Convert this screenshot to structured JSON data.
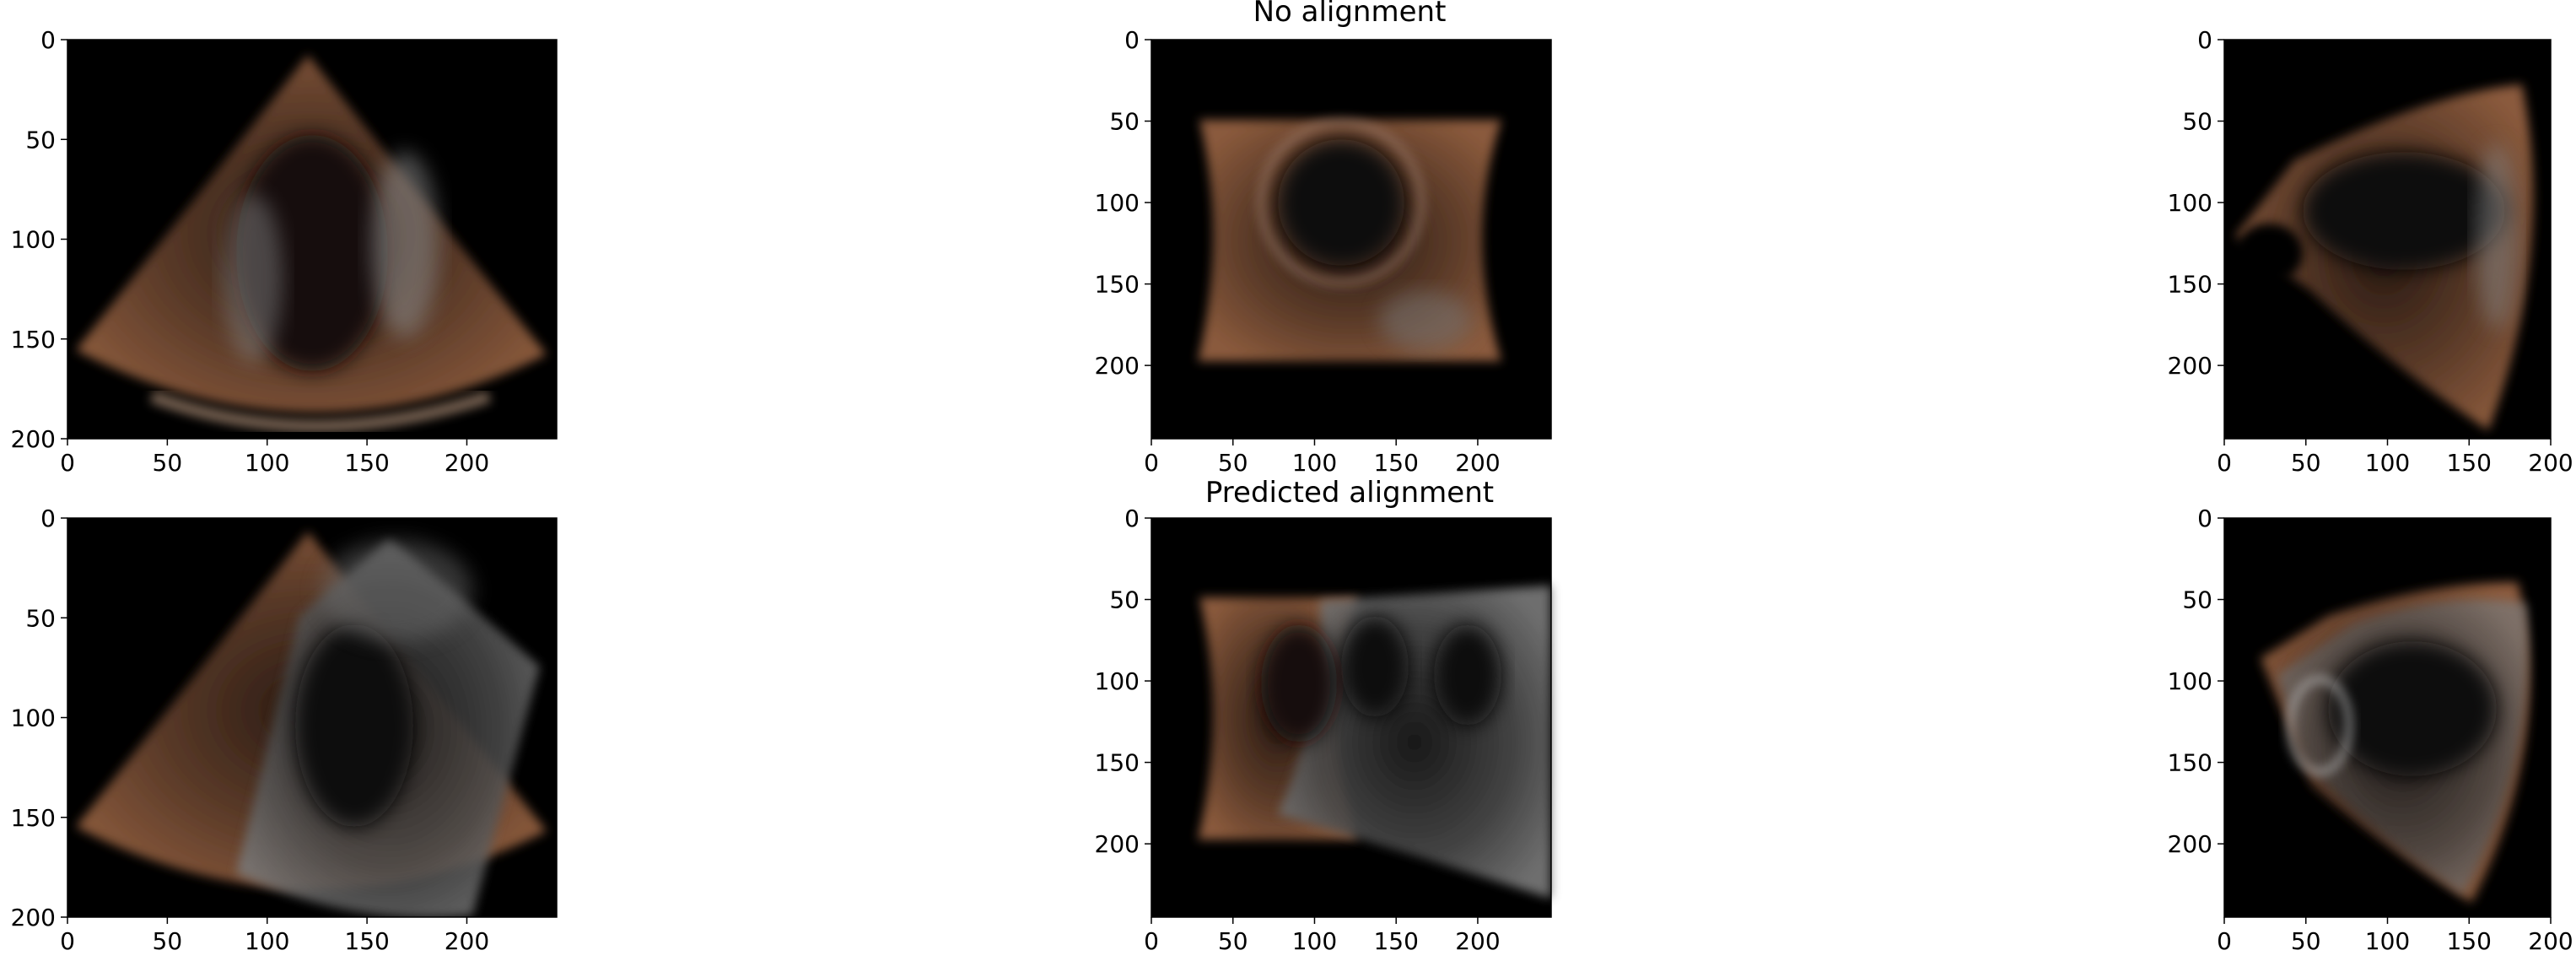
{
  "figure": {
    "row_titles": [
      "No alignment",
      "Predicted alignment"
    ],
    "panels": [
      {
        "id": "r0c0",
        "row": 0,
        "col": 0,
        "xlim": [
          0,
          245
        ],
        "ylim": [
          200,
          0
        ],
        "xticks": [
          0,
          50,
          100,
          150,
          200
        ],
        "yticks": [
          0,
          50,
          100,
          150,
          200
        ],
        "overlay": false
      },
      {
        "id": "r0c1",
        "row": 0,
        "col": 1,
        "xlim": [
          0,
          245
        ],
        "ylim": [
          245,
          0
        ],
        "xticks": [
          0,
          50,
          100,
          150,
          200
        ],
        "yticks": [
          0,
          50,
          100,
          150,
          200
        ],
        "overlay": false
      },
      {
        "id": "r0c2",
        "row": 0,
        "col": 2,
        "xlim": [
          0,
          200
        ],
        "ylim": [
          245,
          0
        ],
        "xticks": [
          0,
          50,
          100,
          150,
          200
        ],
        "yticks": [
          0,
          50,
          100,
          150,
          200
        ],
        "overlay": false
      },
      {
        "id": "r1c0",
        "row": 1,
        "col": 0,
        "xlim": [
          0,
          245
        ],
        "ylim": [
          200,
          0
        ],
        "xticks": [
          0,
          50,
          100,
          150,
          200
        ],
        "yticks": [
          0,
          50,
          100,
          150,
          200
        ],
        "overlay": true
      },
      {
        "id": "r1c1",
        "row": 1,
        "col": 1,
        "xlim": [
          0,
          245
        ],
        "ylim": [
          245,
          0
        ],
        "xticks": [
          0,
          50,
          100,
          150,
          200
        ],
        "yticks": [
          0,
          50,
          100,
          150,
          200
        ],
        "overlay": true
      },
      {
        "id": "r1c2",
        "row": 1,
        "col": 2,
        "xlim": [
          0,
          200
        ],
        "ylim": [
          245,
          0
        ],
        "xticks": [
          0,
          50,
          100,
          150,
          200
        ],
        "yticks": [
          0,
          50,
          100,
          150,
          200
        ],
        "overlay": true
      }
    ],
    "colors": {
      "background": "#000000",
      "tissue_warm": "#b07a55",
      "tissue_gray": "#9a9a9a"
    }
  }
}
